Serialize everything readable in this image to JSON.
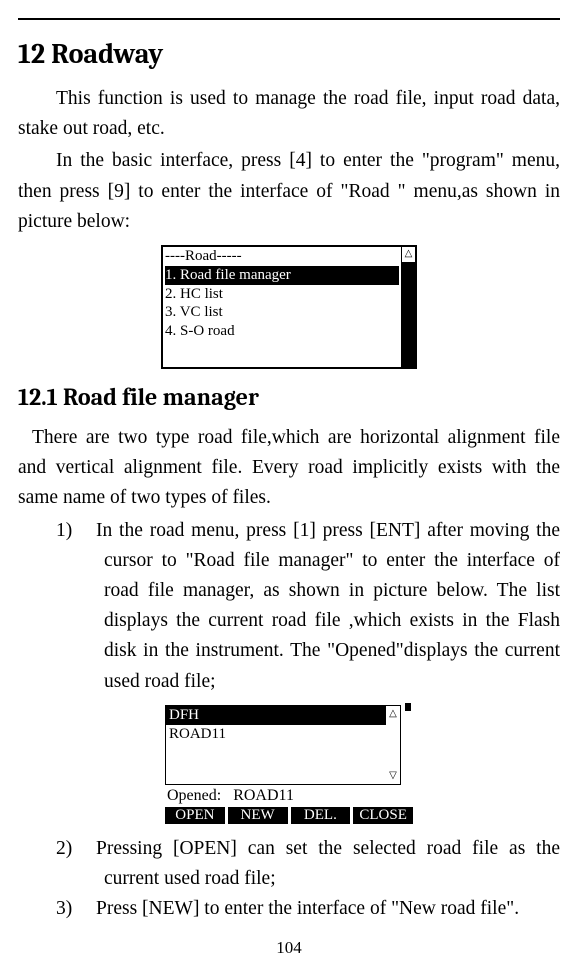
{
  "heading1": "12 Roadway",
  "para1": "This function is used to manage the road file, input road data, stake out road, etc.",
  "para2": "In the basic interface, press [4] to enter the \"program\" menu, then press [9] to enter the interface of \"Road \" menu,as shown in picture below:",
  "menu1": {
    "title": "----Road-----",
    "items": [
      "1. Road file manager",
      "2. HC list",
      "3. VC list",
      "4. S-O road"
    ],
    "selected_index": 0,
    "arrow_up": "△"
  },
  "heading2": "12.1 Road file manager",
  "para3": "There are two type road file,which are horizontal alignment file and vertical alignment file. Every road implicitly exists with the same name of two types of files.",
  "list1": {
    "num": "1)",
    "text": "In the road menu, press [1] press [ENT] after moving the cursor to \"Road file manager\" to enter the interface of road file manager, as shown in picture below. The list displays the current road file ,which exists in the Flash disk in the instrument. The \"Opened\"displays the current used road file;"
  },
  "fm": {
    "rows": [
      "DFH",
      "ROAD11"
    ],
    "selected_index": 0,
    "arrow_up": "△",
    "arrow_down": "▽",
    "opened_label": "Opened:",
    "opened_value": "ROAD11",
    "buttons": [
      "OPEN",
      "NEW",
      "DEL.",
      "CLOSE"
    ]
  },
  "list2": {
    "num": "2)",
    "text": "Pressing [OPEN] can set the selected road file as the current used road file;"
  },
  "list3": {
    "num": "3)",
    "text": "Press [NEW] to enter the interface of \"New road file\"."
  },
  "page_number": "104"
}
